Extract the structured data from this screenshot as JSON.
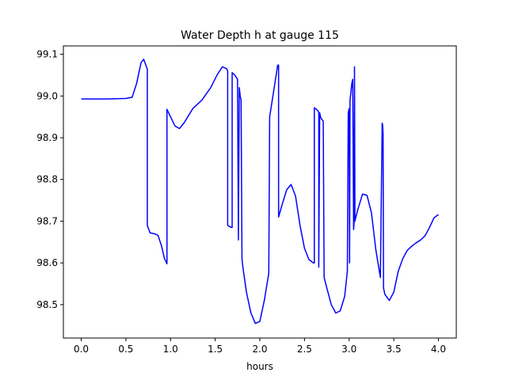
{
  "chart_data": {
    "type": "line",
    "title": "Water Depth h at gauge 115",
    "xlabel": "hours",
    "ylabel": "",
    "xlim": [
      -0.2,
      4.2
    ],
    "ylim": [
      98.42,
      99.12
    ],
    "xticks": [
      0.0,
      0.5,
      1.0,
      1.5,
      2.0,
      2.5,
      3.0,
      3.5,
      4.0
    ],
    "xtick_labels": [
      "0.0",
      "0.5",
      "1.0",
      "1.5",
      "2.0",
      "2.5",
      "3.0",
      "3.5",
      "4.0"
    ],
    "yticks": [
      98.5,
      98.6,
      98.7,
      98.8,
      98.9,
      99.0,
      99.1
    ],
    "ytick_labels": [
      "98.5",
      "98.6",
      "98.7",
      "98.8",
      "98.9",
      "99.0",
      "99.1"
    ],
    "grid": false,
    "series": [
      {
        "color": "#0000ff",
        "x": [
          0.0,
          0.3,
          0.5,
          0.57,
          0.62,
          0.67,
          0.7,
          0.73,
          0.74,
          0.74,
          0.77,
          0.82,
          0.86,
          0.9,
          0.93,
          0.96,
          0.96,
          1.0,
          1.05,
          1.1,
          1.15,
          1.25,
          1.35,
          1.45,
          1.52,
          1.58,
          1.63,
          1.64,
          1.64,
          1.68,
          1.69,
          1.69,
          1.72,
          1.75,
          1.76,
          1.77,
          1.78,
          1.79,
          1.8,
          1.81,
          1.85,
          1.9,
          1.95,
          2.0,
          2.05,
          2.1,
          2.11,
          2.11,
          2.2,
          2.21,
          2.21,
          2.25,
          2.3,
          2.35,
          2.4,
          2.45,
          2.5,
          2.55,
          2.6,
          2.61,
          2.61,
          2.65,
          2.66,
          2.66,
          2.67,
          2.68,
          2.69,
          2.71,
          2.72,
          2.75,
          2.8,
          2.85,
          2.9,
          2.95,
          2.98,
          2.99,
          3.0,
          3.005,
          3.01,
          3.02,
          3.03,
          3.04,
          3.05,
          3.055,
          3.06,
          3.065,
          3.07,
          3.1,
          3.15,
          3.2,
          3.25,
          3.3,
          3.35,
          3.37,
          3.375,
          3.38,
          3.385,
          3.4,
          3.45,
          3.5,
          3.55,
          3.6,
          3.65,
          3.7,
          3.75,
          3.8,
          3.85,
          3.9,
          3.95,
          4.0
        ],
        "y": [
          98.993,
          98.993,
          98.994,
          98.997,
          99.03,
          99.08,
          99.088,
          99.07,
          99.065,
          98.69,
          98.672,
          98.67,
          98.666,
          98.64,
          98.612,
          98.598,
          98.968,
          98.95,
          98.928,
          98.922,
          98.935,
          98.97,
          98.99,
          99.02,
          99.05,
          99.07,
          99.065,
          99.06,
          98.69,
          98.685,
          98.685,
          99.056,
          99.05,
          99.04,
          98.655,
          99.02,
          99.0,
          98.99,
          98.61,
          98.59,
          98.53,
          98.48,
          98.455,
          98.46,
          98.51,
          98.575,
          98.95,
          98.95,
          99.074,
          99.074,
          98.71,
          98.74,
          98.775,
          98.788,
          98.76,
          98.69,
          98.635,
          98.608,
          98.6,
          98.6,
          98.972,
          98.965,
          98.96,
          98.59,
          98.96,
          98.95,
          98.945,
          98.94,
          98.565,
          98.54,
          98.5,
          98.48,
          98.485,
          98.52,
          98.58,
          98.96,
          98.97,
          98.6,
          98.99,
          99.01,
          99.03,
          99.04,
          98.68,
          98.695,
          99.07,
          98.7,
          98.705,
          98.73,
          98.765,
          98.762,
          98.72,
          98.63,
          98.565,
          98.935,
          98.93,
          98.91,
          98.54,
          98.525,
          98.51,
          98.53,
          98.58,
          98.61,
          98.63,
          98.64,
          98.648,
          98.655,
          98.665,
          98.685,
          98.708,
          98.716
        ]
      }
    ]
  }
}
